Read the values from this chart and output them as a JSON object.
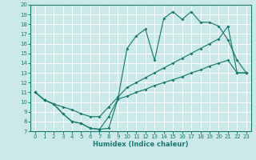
{
  "xlabel": "Humidex (Indice chaleur)",
  "bg_color": "#cce9e9",
  "line_color": "#1a7a6e",
  "grid_color": "#ffffff",
  "xlim": [
    -0.5,
    23.5
  ],
  "ylim": [
    7,
    20
  ],
  "xticks": [
    0,
    1,
    2,
    3,
    4,
    5,
    6,
    7,
    8,
    9,
    10,
    11,
    12,
    13,
    14,
    15,
    16,
    17,
    18,
    19,
    20,
    21,
    22,
    23
  ],
  "yticks": [
    7,
    8,
    9,
    10,
    11,
    12,
    13,
    14,
    15,
    16,
    17,
    18,
    19,
    20
  ],
  "line_top_x": [
    0,
    1,
    2,
    3,
    4,
    5,
    6,
    7,
    8,
    9,
    10,
    11,
    12,
    13,
    14,
    15,
    16,
    17,
    18,
    19,
    20,
    21,
    22,
    23
  ],
  "line_top_y": [
    11.0,
    10.2,
    9.8,
    8.8,
    8.0,
    7.8,
    7.3,
    7.2,
    8.5,
    10.3,
    15.5,
    16.8,
    17.5,
    14.3,
    18.6,
    19.3,
    18.5,
    19.3,
    18.2,
    18.2,
    17.8,
    16.4,
    14.3,
    13.0
  ],
  "line_mid_x": [
    0,
    1,
    2,
    3,
    4,
    5,
    6,
    7,
    8,
    9,
    10,
    11,
    12,
    13,
    14,
    15,
    16,
    17,
    18,
    19,
    20,
    21,
    22,
    23
  ],
  "line_mid_y": [
    11.0,
    10.2,
    9.8,
    9.5,
    9.2,
    8.8,
    8.5,
    8.5,
    9.5,
    10.5,
    11.5,
    12.0,
    12.5,
    13.0,
    13.5,
    14.0,
    14.5,
    15.0,
    15.5,
    16.0,
    16.5,
    17.8,
    13.0,
    13.0
  ],
  "line_bot_x": [
    0,
    1,
    2,
    3,
    4,
    5,
    6,
    7,
    8,
    9,
    10,
    11,
    12,
    13,
    14,
    15,
    16,
    17,
    18,
    19,
    20,
    21,
    22,
    23
  ],
  "line_bot_y": [
    11.0,
    10.2,
    9.8,
    8.8,
    8.0,
    7.8,
    7.3,
    7.2,
    7.3,
    10.3,
    10.6,
    11.0,
    11.3,
    11.7,
    12.0,
    12.3,
    12.6,
    13.0,
    13.3,
    13.7,
    14.0,
    14.3,
    13.0,
    13.0
  ]
}
